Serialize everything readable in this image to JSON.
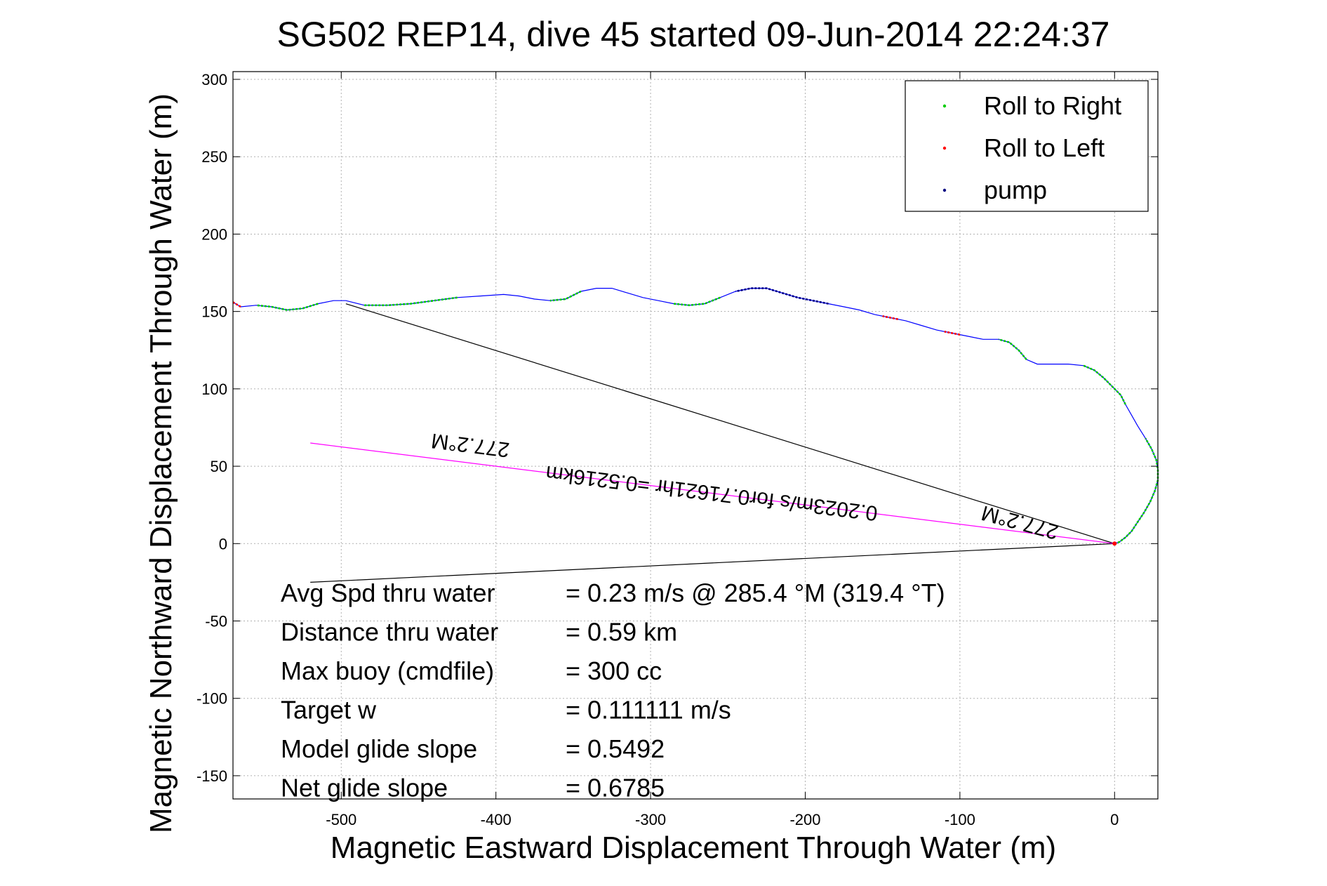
{
  "chart_data": {
    "type": "line",
    "title": "SG502 REP14, dive 45 started 09-Jun-2014 22:24:37",
    "xlabel": "Magnetic Eastward Displacement Through Water (m)",
    "ylabel": "Magnetic Northward Displacement Through Water (m)",
    "xlim": [
      -570,
      28
    ],
    "ylim": [
      -165,
      305
    ],
    "xticks": [
      -500,
      -400,
      -300,
      -200,
      -100,
      0
    ],
    "yticks": [
      300,
      250,
      200,
      150,
      100,
      50,
      0,
      -50,
      -100,
      -150
    ],
    "grid": true,
    "legend_position": "top-right",
    "legend": [
      {
        "label": "Roll to Right",
        "color": "#00cc00"
      },
      {
        "label": "Roll to Left",
        "color": "#ff0000"
      },
      {
        "label": "pump",
        "color": "#000080"
      }
    ],
    "track": [
      [
        0,
        0
      ],
      [
        3,
        1
      ],
      [
        7,
        4
      ],
      [
        11,
        8
      ],
      [
        15,
        14
      ],
      [
        19,
        20
      ],
      [
        23,
        27
      ],
      [
        26,
        34
      ],
      [
        28,
        41
      ],
      [
        28,
        48
      ],
      [
        27,
        54
      ],
      [
        24,
        61
      ],
      [
        20,
        68
      ],
      [
        15,
        76
      ],
      [
        11,
        83
      ],
      [
        7,
        90
      ],
      [
        4,
        96
      ],
      [
        -2,
        102
      ],
      [
        -7,
        107
      ],
      [
        -13,
        112
      ],
      [
        -20,
        115
      ],
      [
        -30,
        116
      ],
      [
        -40,
        116
      ],
      [
        -50,
        116
      ],
      [
        -57,
        119
      ],
      [
        -62,
        125
      ],
      [
        -68,
        130
      ],
      [
        -75,
        132
      ],
      [
        -85,
        132
      ],
      [
        -95,
        134
      ],
      [
        -105,
        136
      ],
      [
        -115,
        138
      ],
      [
        -125,
        141
      ],
      [
        -135,
        144
      ],
      [
        -145,
        146
      ],
      [
        -155,
        148
      ],
      [
        -165,
        151
      ],
      [
        -175,
        153
      ],
      [
        -185,
        155
      ],
      [
        -195,
        157
      ],
      [
        -205,
        159
      ],
      [
        -215,
        162
      ],
      [
        -225,
        165
      ],
      [
        -235,
        165
      ],
      [
        -245,
        163
      ],
      [
        -255,
        159
      ],
      [
        -265,
        155
      ],
      [
        -275,
        154
      ],
      [
        -285,
        155
      ],
      [
        -295,
        157
      ],
      [
        -305,
        159
      ],
      [
        -315,
        162
      ],
      [
        -325,
        165
      ],
      [
        -335,
        165
      ],
      [
        -345,
        163
      ],
      [
        -355,
        158
      ],
      [
        -365,
        157
      ],
      [
        -375,
        158
      ],
      [
        -385,
        160
      ],
      [
        -395,
        161
      ],
      [
        -410,
        160
      ],
      [
        -425,
        159
      ],
      [
        -440,
        157
      ],
      [
        -455,
        155
      ],
      [
        -470,
        154
      ],
      [
        -485,
        154
      ],
      [
        -497,
        157
      ],
      [
        -505,
        157
      ],
      [
        -515,
        155
      ],
      [
        -525,
        152
      ],
      [
        -535,
        151
      ],
      [
        -545,
        153
      ],
      [
        -555,
        154
      ],
      [
        -565,
        153
      ],
      [
        -570,
        156
      ]
    ],
    "roll_right_segments": [
      [
        [
          0,
          0
        ],
        [
          3,
          1
        ],
        [
          7,
          4
        ],
        [
          11,
          8
        ],
        [
          15,
          14
        ],
        [
          19,
          20
        ],
        [
          23,
          27
        ],
        [
          26,
          34
        ],
        [
          28,
          41
        ],
        [
          28,
          48
        ],
        [
          27,
          54
        ],
        [
          24,
          61
        ],
        [
          20,
          68
        ]
      ],
      [
        [
          7,
          90
        ],
        [
          4,
          96
        ],
        [
          -2,
          102
        ],
        [
          -7,
          107
        ],
        [
          -13,
          112
        ],
        [
          -20,
          115
        ]
      ],
      [
        [
          -57,
          119
        ],
        [
          -62,
          125
        ],
        [
          -68,
          130
        ],
        [
          -75,
          132
        ]
      ],
      [
        [
          -255,
          159
        ],
        [
          -265,
          155
        ],
        [
          -275,
          154
        ],
        [
          -285,
          155
        ]
      ],
      [
        [
          -345,
          163
        ],
        [
          -355,
          158
        ],
        [
          -365,
          157
        ]
      ],
      [
        [
          -425,
          159
        ],
        [
          -440,
          157
        ],
        [
          -455,
          155
        ],
        [
          -470,
          154
        ],
        [
          -485,
          154
        ]
      ],
      [
        [
          -515,
          155
        ],
        [
          -525,
          152
        ],
        [
          -535,
          151
        ],
        [
          -545,
          153
        ],
        [
          -555,
          154
        ]
      ]
    ],
    "roll_left_segments": [
      [
        [
          -100,
          135
        ],
        [
          -105,
          136
        ],
        [
          -110,
          137
        ]
      ],
      [
        [
          -140,
          145
        ],
        [
          -145,
          146
        ],
        [
          -150,
          147
        ]
      ],
      [
        [
          -565,
          153
        ],
        [
          -570,
          156
        ]
      ]
    ],
    "pump_segments": [
      [
        [
          -185,
          155
        ],
        [
          -195,
          157
        ],
        [
          -205,
          159
        ],
        [
          -215,
          162
        ],
        [
          -225,
          165
        ],
        [
          -235,
          165
        ],
        [
          -245,
          163
        ]
      ]
    ],
    "lines": [
      {
        "name": "black_upper",
        "from": [
          -497,
          155
        ],
        "to": [
          0,
          0
        ]
      },
      {
        "name": "black_lower",
        "from": [
          -520,
          -25
        ],
        "to": [
          0,
          0
        ]
      },
      {
        "name": "magenta",
        "from": [
          -520,
          65
        ],
        "to": [
          0,
          0
        ]
      }
    ],
    "annotations": [
      {
        "text": "277.2°M",
        "x": -416,
        "y": 68,
        "rotation": 187
      },
      {
        "text": "277.2°M",
        "x": -60,
        "y": 18,
        "rotation": 195
      },
      {
        "text": "0.2023m/s for0.71621hr =0.5216km",
        "x": -260,
        "y": 37,
        "rotation": 187
      }
    ],
    "stats": [
      {
        "label": "Avg Spd thru water",
        "value": "=  0.23 m/s @ 285.4 °M (319.4 °T)"
      },
      {
        "label": "Distance thru water",
        "value": "=  0.59 km"
      },
      {
        "label": "Max buoy (cmdfile)",
        "value": "= 300 cc"
      },
      {
        "label": "Target w",
        "value": "= 0.111111 m/s"
      },
      {
        "label": "Model glide slope",
        "value": "= 0.5492"
      },
      {
        "label": "Net glide slope",
        "value": "= 0.6785"
      }
    ]
  }
}
